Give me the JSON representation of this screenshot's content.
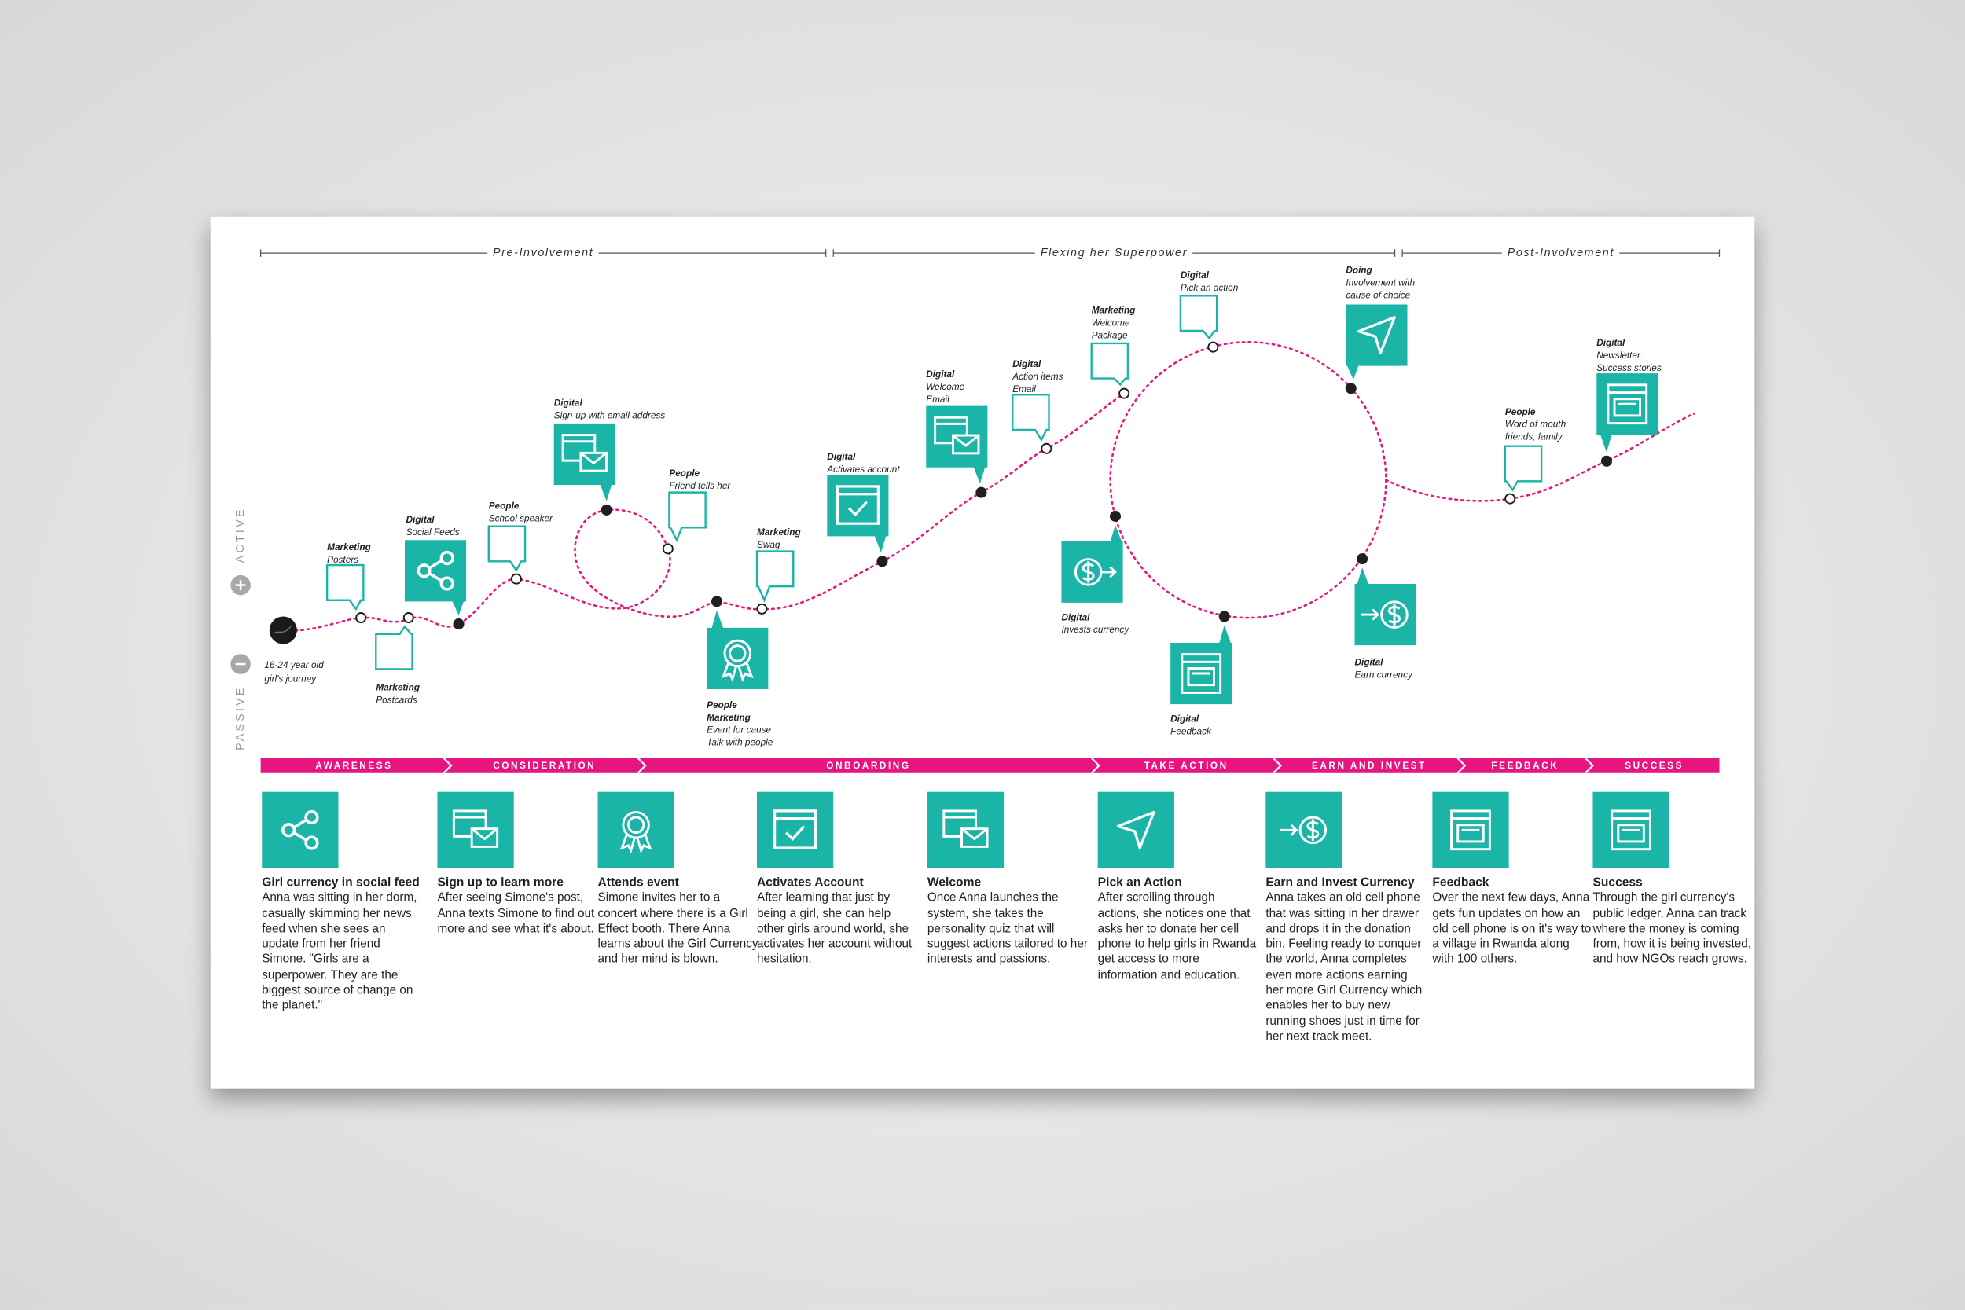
{
  "phases": [
    "Pre-Involvement",
    "Flexing her Superpower",
    "Post-Involvement"
  ],
  "scale": {
    "active": "ACTIVE",
    "passive": "PASSIVE"
  },
  "start_label": [
    "16-24 year old",
    "girl's journey"
  ],
  "touchpoints": [
    {
      "channel": [
        "Marketing"
      ],
      "detail": [
        "Posters"
      ]
    },
    {
      "channel": [
        "Marketing"
      ],
      "detail": [
        "Postcards"
      ]
    },
    {
      "channel": [
        "Digital"
      ],
      "detail": [
        "Social Feeds"
      ]
    },
    {
      "channel": [
        "People"
      ],
      "detail": [
        "School speaker"
      ]
    },
    {
      "channel": [
        "Digital"
      ],
      "detail": [
        "Sign-up with email address"
      ]
    },
    {
      "channel": [
        "People"
      ],
      "detail": [
        "Friend tells her"
      ]
    },
    {
      "channel": [
        "People",
        "Marketing"
      ],
      "detail": [
        "Event for cause",
        "Talk with people"
      ]
    },
    {
      "channel": [
        "Marketing"
      ],
      "detail": [
        "Swag"
      ]
    },
    {
      "channel": [
        "Digital"
      ],
      "detail": [
        "Activates account"
      ]
    },
    {
      "channel": [
        "Digital"
      ],
      "detail": [
        "Welcome",
        "Email"
      ]
    },
    {
      "channel": [
        "Digital"
      ],
      "detail": [
        "Action items",
        "Email"
      ]
    },
    {
      "channel": [
        "Marketing"
      ],
      "detail": [
        "Welcome",
        "Package"
      ]
    },
    {
      "channel": [
        "Digital"
      ],
      "detail": [
        "Pick an action"
      ]
    },
    {
      "channel": [
        "Doing"
      ],
      "detail": [
        "Involvement with",
        "cause of choice"
      ]
    },
    {
      "channel": [
        "Digital"
      ],
      "detail": [
        "Invests currency"
      ]
    },
    {
      "channel": [
        "Digital"
      ],
      "detail": [
        "Feedback"
      ]
    },
    {
      "channel": [
        "Digital"
      ],
      "detail": [
        "Earn currency"
      ]
    },
    {
      "channel": [
        "People"
      ],
      "detail": [
        "Word of mouth",
        "friends, family"
      ]
    },
    {
      "channel": [
        "Digital"
      ],
      "detail": [
        "Newsletter",
        "Success stories"
      ]
    }
  ],
  "stages": [
    "AWARENESS",
    "CONSIDERATION",
    "ONBOARDING",
    "TAKE ACTION",
    "EARN AND INVEST",
    "FEEDBACK",
    "SUCCESS"
  ],
  "steps": [
    {
      "title": "Girl currency in social feed",
      "text": "Anna was sitting in her dorm, casually skimming her news feed when she sees an update from her friend Simone. \"Girls are a superpower. They are the biggest source of change on the planet.\""
    },
    {
      "title": "Sign up to learn more",
      "text": "After seeing Simone's post, Anna texts Simone to find out more and see what it's about."
    },
    {
      "title": "Attends event",
      "text": "Simone invites her to a concert where there is a Girl Effect booth. There Anna learns about the Girl Currency and her mind is blown."
    },
    {
      "title": "Activates Account",
      "text": "After learning that just by being a girl, she can help other girls around world, she activates her account without hesitation."
    },
    {
      "title": "Welcome",
      "text": "Once Anna launches the system, she takes the personality quiz that will suggest actions tailored to her interests and passions."
    },
    {
      "title": "Pick an Action",
      "text": "After scrolling through actions, she notices one that asks her to donate her cell phone to help girls in Rwanda get access to more information and education."
    },
    {
      "title": "Earn and Invest Currency",
      "text": "Anna takes an old cell phone that was sitting in her drawer and drops it in the donation bin. Feeling ready to conquer the world, Anna completes even more actions earning her more Girl Currency which enables her to buy new running shoes just in time for her next track meet."
    },
    {
      "title": "Feedback",
      "text": "Over the next few days, Anna gets fun updates on how an old cell phone is on it's way to a village in Rwanda along with 100 others."
    },
    {
      "title": "Success",
      "text": "Through the girl currency's public ledger, Anna can track where the money is coming from, how it is being invested, and how NGOs reach grows."
    }
  ]
}
